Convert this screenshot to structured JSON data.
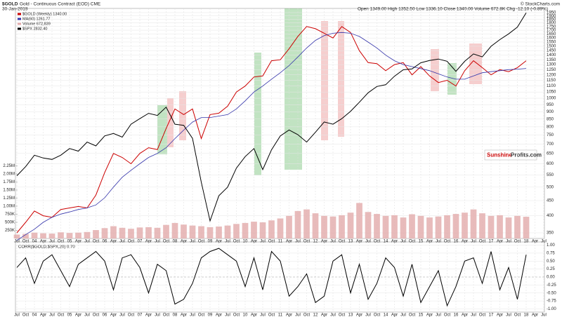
{
  "chart_data": [
    {
      "type": "line",
      "title": "$GOLD",
      "subtitle": "Gold - Continuous Contract (EOD) CME",
      "date": "30-Jan-2018",
      "quote": "Open 1349.00 High 1352.50 Low 1336.10 Close 1340.00 Volume 672.8K Chg -12.10 (-0.89%)",
      "source": "© StockCharts.com",
      "watermark": [
        "Sunshine",
        "Profits.com"
      ],
      "categories": [
        "Jul",
        "Oct",
        "04",
        "Apr",
        "Jul",
        "Oct",
        "05",
        "Apr",
        "Jul",
        "Oct",
        "06",
        "Apr",
        "Jul",
        "Oct",
        "07",
        "Apr",
        "Jul",
        "Oct",
        "08",
        "Apr",
        "Jul",
        "Oct",
        "09",
        "Apr",
        "Jul",
        "Oct",
        "10",
        "Apr",
        "Jul",
        "Oct",
        "11",
        "Apr",
        "Jul",
        "Oct",
        "12",
        "Apr",
        "Jul",
        "Oct",
        "13",
        "Apr",
        "Jul",
        "Oct",
        "14",
        "Apr",
        "Jul",
        "Oct",
        "15",
        "Apr",
        "Jul",
        "Oct",
        "16",
        "Apr",
        "Jul",
        "Oct",
        "17",
        "Apr",
        "Jul",
        "Oct",
        "18",
        "Apr",
        "Jul"
      ],
      "series": [
        {
          "name": "$GOLD (Weekly) 1340.00",
          "color": "#cc0000",
          "values": [
            350,
            380,
            415,
            400,
            395,
            420,
            425,
            430,
            425,
            470,
            560,
            650,
            630,
            600,
            650,
            680,
            670,
            790,
            920,
            880,
            920,
            730,
            880,
            890,
            940,
            1050,
            1100,
            1180,
            1190,
            1340,
            1350,
            1470,
            1620,
            1750,
            1720,
            1660,
            1600,
            1750,
            1670,
            1450,
            1320,
            1310,
            1240,
            1300,
            1320,
            1200,
            1280,
            1190,
            1130,
            1150,
            1100,
            1240,
            1340,
            1270,
            1200,
            1250,
            1230,
            1270,
            1340,
            null,
            null
          ]
        },
        {
          "name": "MA(60) 1261.77",
          "color": "#3333aa",
          "values": [
            330,
            345,
            360,
            380,
            395,
            405,
            412,
            420,
            425,
            435,
            460,
            500,
            540,
            570,
            600,
            630,
            650,
            680,
            730,
            780,
            830,
            860,
            860,
            870,
            880,
            920,
            980,
            1050,
            1100,
            1160,
            1220,
            1290,
            1380,
            1480,
            1570,
            1630,
            1660,
            1670,
            1660,
            1620,
            1550,
            1480,
            1400,
            1340,
            1300,
            1280,
            1260,
            1240,
            1210,
            1180,
            1160,
            1160,
            1190,
            1220,
            1230,
            1240,
            1250,
            1255,
            1261.77,
            null,
            null
          ]
        },
        {
          "name": "Volume 672,839",
          "type": "bar",
          "axis": "y2",
          "color": "#e2aaaa",
          "values": [
            120000,
            140000,
            180000,
            160000,
            150000,
            190000,
            170000,
            180000,
            200000,
            260000,
            320000,
            380000,
            330000,
            300000,
            340000,
            350000,
            330000,
            420000,
            480000,
            430000,
            400000,
            380000,
            350000,
            370000,
            400000,
            450000,
            480000,
            520000,
            500000,
            560000,
            620000,
            700000,
            850000,
            900000,
            780000,
            700000,
            680000,
            720000,
            800000,
            1100000,
            820000,
            760000,
            700000,
            720000,
            650000,
            750000,
            700000,
            650000,
            680000,
            720000,
            760000,
            800000,
            900000,
            780000,
            700000,
            720000,
            650000,
            700000,
            672839,
            null,
            null
          ]
        },
        {
          "name": "$SPX 2832.40",
          "axis": "y3",
          "color": "#000000",
          "values": [
            990,
            1050,
            1130,
            1110,
            1100,
            1130,
            1180,
            1160,
            1230,
            1200,
            1280,
            1300,
            1270,
            1380,
            1430,
            1480,
            1460,
            1540,
            1380,
            1370,
            1260,
            950,
            740,
            870,
            920,
            1040,
            1120,
            1180,
            1030,
            1170,
            1280,
            1330,
            1290,
            1230,
            1310,
            1400,
            1380,
            1430,
            1500,
            1590,
            1690,
            1760,
            1780,
            1880,
            1960,
            1970,
            2050,
            2080,
            2100,
            2070,
            1940,
            2070,
            2170,
            2130,
            2280,
            2380,
            2470,
            2580,
            2830,
            null,
            null
          ]
        }
      ],
      "log": true,
      "ylim": [
        335,
        2015
      ],
      "yticks": [
        350,
        400,
        450,
        500,
        550,
        600,
        650,
        700,
        750,
        800,
        850,
        900,
        950,
        1000,
        1050,
        1100,
        1150,
        1200,
        1250,
        1300,
        1350,
        1400,
        1450,
        1500,
        1550,
        1600,
        1650,
        1700,
        1750,
        1800,
        1850,
        1900,
        1950
      ],
      "y2lim": [
        0,
        7130000
      ],
      "y2ticks": [
        {
          "value": 250000,
          "label": "250K"
        },
        {
          "value": 500000,
          "label": "500K"
        },
        {
          "value": 750000,
          "label": "750K"
        },
        {
          "value": 1000000,
          "label": "1.00M"
        },
        {
          "value": 1250000,
          "label": "1.25M"
        },
        {
          "value": 1500000,
          "label": "1.50M"
        },
        {
          "value": 1750000,
          "label": "1.75M"
        },
        {
          "value": 2000000,
          "label": "2.00M"
        },
        {
          "value": 2250000,
          "label": "2.25M"
        }
      ],
      "y3lim": [
        661,
        2910
      ],
      "grid": true
    },
    {
      "type": "line",
      "title": "CORR($GOLD,$SPX,20) 0.70",
      "categories": [
        "Jul",
        "Oct",
        "04",
        "Apr",
        "Jul",
        "Oct",
        "05",
        "Apr",
        "Jul",
        "Oct",
        "06",
        "Apr",
        "Jul",
        "Oct",
        "07",
        "Apr",
        "Jul",
        "Oct",
        "08",
        "Apr",
        "Jul",
        "Oct",
        "09",
        "Apr",
        "Jul",
        "Oct",
        "10",
        "Apr",
        "Jul",
        "Oct",
        "11",
        "Apr",
        "Jul",
        "Oct",
        "12",
        "Apr",
        "Jul",
        "Oct",
        "13",
        "Apr",
        "Jul",
        "Oct",
        "14",
        "Apr",
        "Jul",
        "Oct",
        "15",
        "Apr",
        "Jul",
        "Oct",
        "16",
        "Apr",
        "Jul",
        "Oct",
        "17",
        "Apr",
        "Jul",
        "Oct",
        "18",
        "Apr",
        "Jul"
      ],
      "series": [
        {
          "name": "CORR",
          "color": "#000000",
          "values": [
            0.3,
            0.6,
            -0.2,
            0.5,
            0.7,
            0.2,
            -0.3,
            0.4,
            0.6,
            0.8,
            0.5,
            -0.4,
            0.6,
            0.7,
            0.3,
            -0.5,
            0.4,
            0.2,
            -0.85,
            -0.7,
            -0.2,
            0.6,
            0.8,
            0.9,
            0.7,
            0.5,
            -0.3,
            0.6,
            -0.4,
            0.8,
            0.5,
            -0.6,
            -0.3,
            0.1,
            -0.8,
            -0.6,
            0.5,
            0.7,
            -0.5,
            0.4,
            -0.7,
            -0.2,
            0.6,
            0.3,
            -0.6,
            0.4,
            -0.8,
            -0.3,
            0.2,
            -0.9,
            -0.3,
            0.5,
            0.6,
            -0.2,
            0.8,
            -0.4,
            0.3,
            -0.7,
            0.7,
            null,
            null
          ]
        }
      ],
      "ylim": [
        -1.1,
        1.1
      ],
      "yticks": [
        {
          "value": 1,
          "label": "1.00"
        },
        {
          "value": 0.75,
          "label": "0.75"
        },
        {
          "value": 0.5,
          "label": "0.50"
        },
        {
          "value": 0.25,
          "label": "0.25"
        },
        {
          "value": 0,
          "label": "0.00"
        },
        {
          "value": -0.25,
          "label": "-0.25"
        },
        {
          "value": -0.5,
          "label": "-0.50"
        },
        {
          "value": -0.75,
          "label": "-0.75"
        },
        {
          "value": -1,
          "label": "-1.00"
        }
      ],
      "grid": true
    }
  ]
}
